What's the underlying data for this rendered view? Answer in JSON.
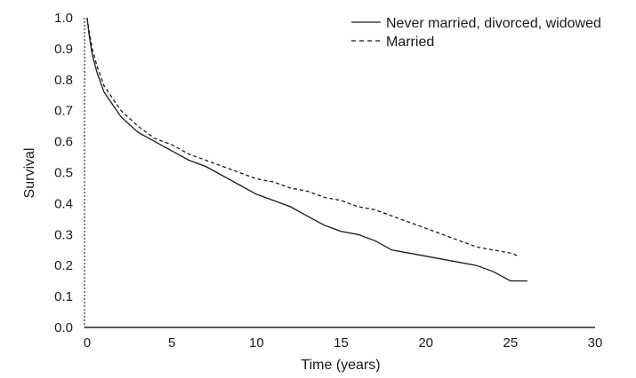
{
  "chart_data": {
    "type": "line",
    "title": "",
    "xlabel": "Time (years)",
    "ylabel": "Survival",
    "xlim": [
      0,
      30
    ],
    "ylim": [
      0,
      1
    ],
    "x_ticks": [
      "0",
      "5",
      "10",
      "15",
      "20",
      "25",
      "30"
    ],
    "y_ticks": [
      "0.0",
      "0.1",
      "0.2",
      "0.3",
      "0.4",
      "0.5",
      "0.6",
      "0.7",
      "0.8",
      "0.9",
      "1.0"
    ],
    "grid": false,
    "legend_position": "top-right",
    "series": [
      {
        "name": "Never married, divorced, widowed",
        "style": "solid",
        "color": "#1a1a1a",
        "x": [
          0,
          0.1,
          0.3,
          0.6,
          1,
          1.5,
          2,
          3,
          4,
          5,
          6,
          7,
          8,
          9,
          10,
          11,
          12,
          13,
          14,
          15,
          16,
          17,
          18,
          19,
          20,
          21,
          22,
          23,
          24,
          25,
          25.5,
          26
        ],
        "y": [
          1.0,
          0.95,
          0.88,
          0.82,
          0.76,
          0.72,
          0.68,
          0.63,
          0.6,
          0.57,
          0.54,
          0.52,
          0.49,
          0.46,
          0.43,
          0.41,
          0.39,
          0.36,
          0.33,
          0.31,
          0.3,
          0.28,
          0.25,
          0.24,
          0.23,
          0.22,
          0.21,
          0.2,
          0.18,
          0.15,
          0.15,
          0.15
        ]
      },
      {
        "name": "Married",
        "style": "dashed",
        "color": "#1a1a1a",
        "x": [
          0,
          0.1,
          0.3,
          0.6,
          1,
          1.5,
          2,
          3,
          4,
          5,
          6,
          7,
          8,
          9,
          10,
          11,
          12,
          13,
          14,
          15,
          16,
          17,
          18,
          19,
          20,
          21,
          22,
          23,
          24,
          25,
          25.5
        ],
        "y": [
          1.0,
          0.96,
          0.9,
          0.84,
          0.78,
          0.74,
          0.7,
          0.65,
          0.61,
          0.59,
          0.56,
          0.54,
          0.52,
          0.5,
          0.48,
          0.47,
          0.45,
          0.44,
          0.42,
          0.41,
          0.39,
          0.38,
          0.36,
          0.34,
          0.32,
          0.3,
          0.28,
          0.26,
          0.25,
          0.24,
          0.23
        ]
      }
    ]
  }
}
